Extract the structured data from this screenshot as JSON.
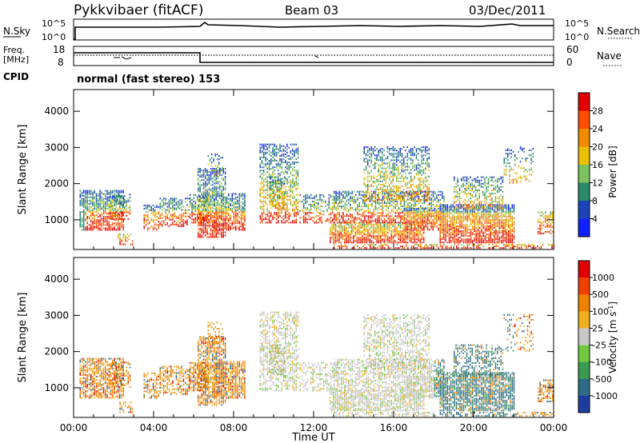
{
  "header": {
    "station": "Pykkvibaer (fitACF)",
    "beam": "Beam 03",
    "date": "03/Dec/2011"
  },
  "noise_panel": {
    "left_label": "N.Sky",
    "right_label": "N.Search",
    "left_ticks": [
      "10^5",
      "10^0"
    ],
    "right_ticks": [
      "10^5",
      "10^0"
    ]
  },
  "freq_panel": {
    "left_label_1": "Freq.",
    "left_label_2": "[MHz]",
    "left_ticks": [
      "18",
      "8"
    ],
    "right_label": "Nave",
    "right_ticks": [
      "60",
      "0"
    ]
  },
  "cpid": {
    "label": "CPID",
    "value": "normal (fast stereo) 153"
  },
  "chart_data": [
    {
      "type": "heatmap",
      "ylabel": "Slant Range [km]",
      "xlabel": "Time UT",
      "x_ticks": [
        "00:00",
        "04:00",
        "08:00",
        "12:00",
        "16:00",
        "20:00",
        "00:00"
      ],
      "y_ticks": [
        "1000",
        "2000",
        "3000",
        "4000"
      ],
      "ylim": [
        180,
        4600
      ],
      "colorbar_label": "Power [dB]",
      "colorbar_ticks": [
        "4",
        "8",
        "12",
        "16",
        "20",
        "24",
        "28"
      ],
      "colors": [
        "#1020ff",
        "#1c44b8",
        "#2a8a6a",
        "#7cc060",
        "#e8c000",
        "#f08a00",
        "#ff5000",
        "#e00000"
      ]
    },
    {
      "type": "heatmap",
      "ylabel": "Slant Range [km]",
      "xlabel": "Time UT",
      "x_ticks": [
        "00:00",
        "04:00",
        "08:00",
        "12:00",
        "16:00",
        "20:00",
        "00:00"
      ],
      "y_ticks": [
        "1000",
        "2000",
        "3000",
        "4000"
      ],
      "ylim": [
        180,
        4600
      ],
      "colorbar_label": "Velocity [m s^-1]",
      "colorbar_ticks": [
        "1000",
        "500",
        "100",
        "25",
        "-25",
        "-100",
        "-500",
        "-1000"
      ],
      "colors": [
        "#1c3ca0",
        "#2c6c88",
        "#3a9a50",
        "#70c840",
        "#c8c8c8",
        "#f0b020",
        "#f08000",
        "#f04000",
        "#e00000"
      ]
    }
  ]
}
